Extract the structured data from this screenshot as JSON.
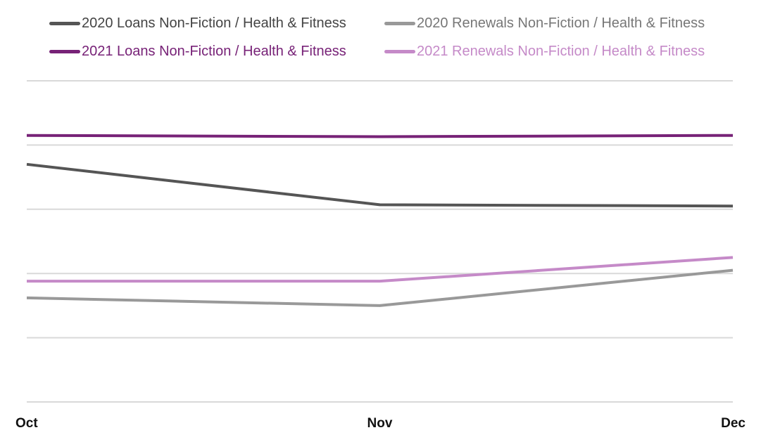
{
  "chart_data": {
    "type": "line",
    "title": "",
    "xlabel": "",
    "ylabel": "",
    "categories": [
      "Oct",
      "Nov",
      "Dec"
    ],
    "ylim": [
      0,
      5
    ],
    "grid": true,
    "legend_position": "top",
    "series": [
      {
        "name": "2020 Loans Non-Fiction / Health & Fitness",
        "color": "#555555",
        "values": [
          3.7,
          3.07,
          3.05
        ]
      },
      {
        "name": "2020 Renewals Non-Fiction / Health & Fitness",
        "color": "#999999",
        "values": [
          1.62,
          1.5,
          2.05
        ]
      },
      {
        "name": "2021 Loans Non-Fiction / Health & Fitness",
        "color": "#772277",
        "values": [
          4.15,
          4.13,
          4.15
        ]
      },
      {
        "name": "2021 Renewals Non-Fiction / Health & Fitness",
        "color": "#c58ac8",
        "values": [
          1.88,
          1.88,
          2.25
        ]
      }
    ]
  }
}
